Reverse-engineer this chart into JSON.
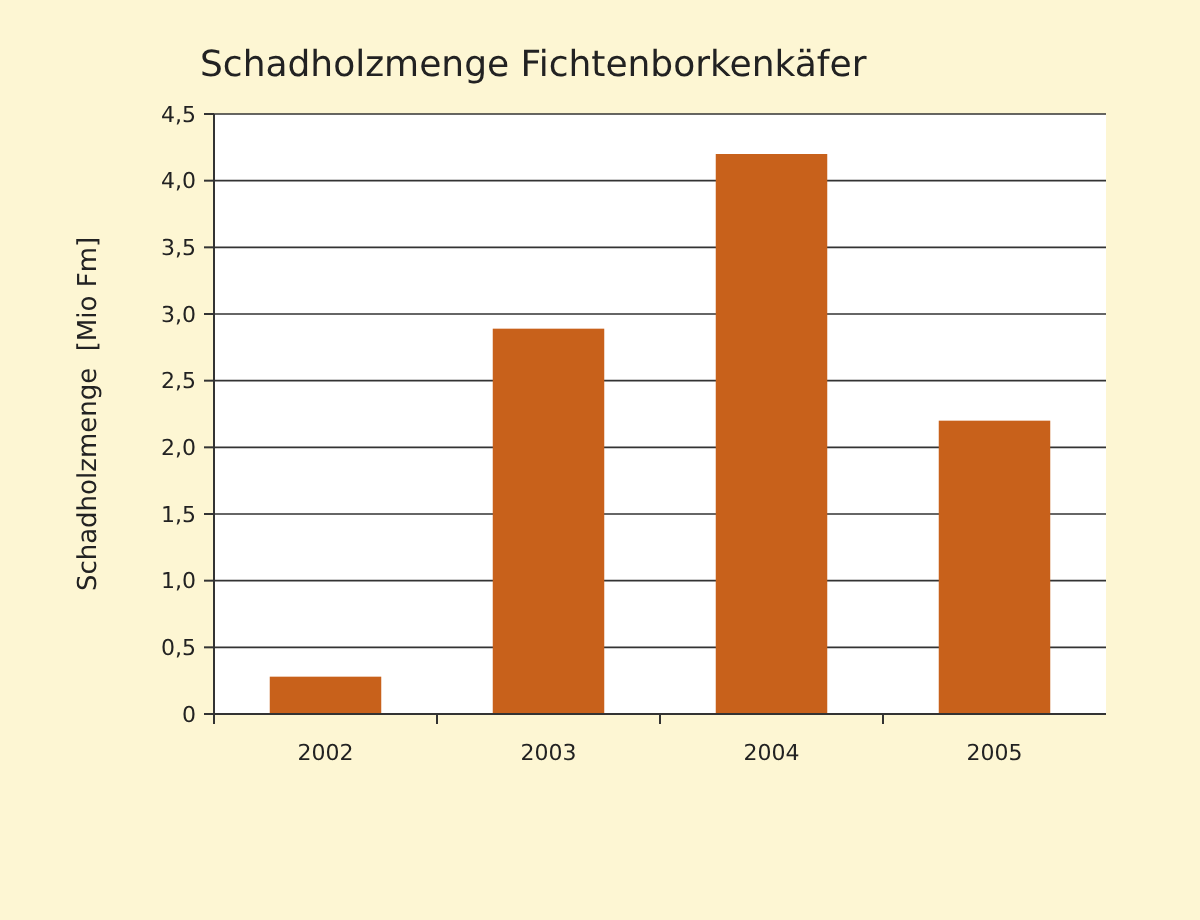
{
  "chart_data": {
    "type": "bar",
    "title": "Schadholzmenge Fichtenborkenkäfer",
    "ylabel": "Schadholzmenge  [Mio Fm]",
    "categories": [
      "2002",
      "2003",
      "2004",
      "2005"
    ],
    "values": [
      0.28,
      2.89,
      4.2,
      2.2
    ],
    "color": "#c8611b",
    "ylim": [
      0,
      4.5
    ],
    "yticks": [
      {
        "value": 0,
        "label": "0"
      },
      {
        "value": 0.5,
        "label": "0,5"
      },
      {
        "value": 1,
        "label": "1,0"
      },
      {
        "value": 1.5,
        "label": "1,5"
      },
      {
        "value": 2,
        "label": "2,0"
      },
      {
        "value": 2.5,
        "label": "2,5"
      },
      {
        "value": 3,
        "label": "3,0"
      },
      {
        "value": 3.5,
        "label": "3,5"
      },
      {
        "value": 4,
        "label": "4,0"
      },
      {
        "value": 4.5,
        "label": "4,5"
      }
    ],
    "grid": "y"
  }
}
